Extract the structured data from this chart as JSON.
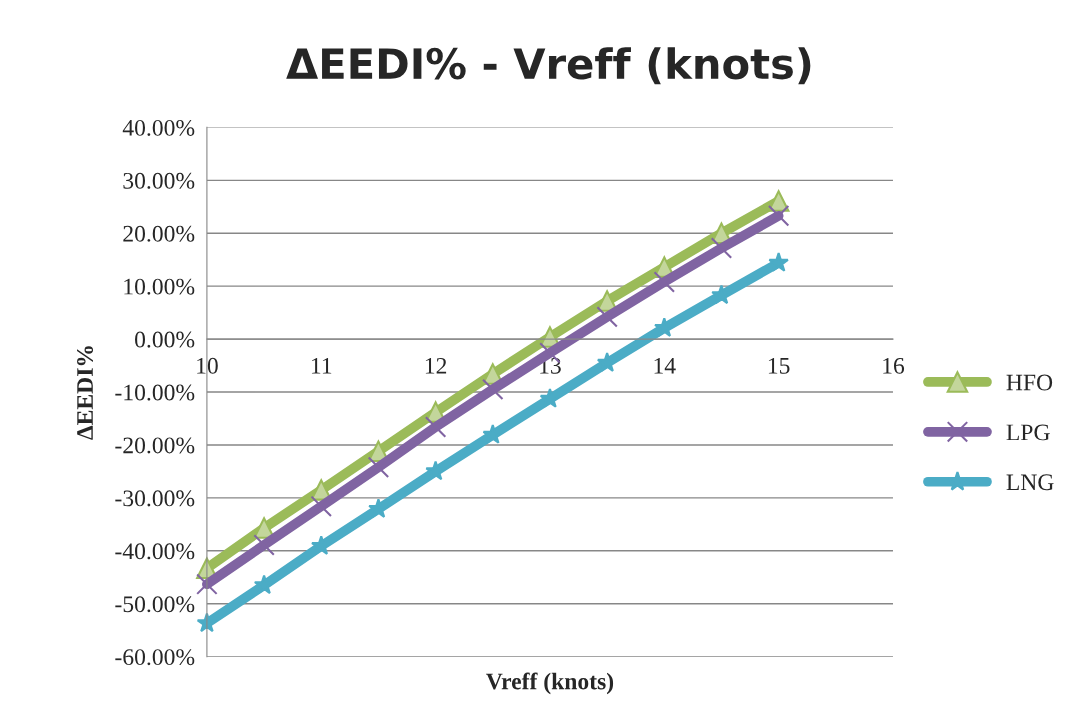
{
  "chart_data": {
    "type": "line",
    "title": "ΔEEDI% - Vreff (knots)",
    "xlabel": "Vreff (knots)",
    "ylabel": "ΔEEDI%",
    "x": [
      10,
      10.5,
      11,
      11.5,
      12,
      12.5,
      13,
      13.5,
      14,
      14.5,
      15
    ],
    "series": [
      {
        "name": "HFO",
        "color": "#9bbb59",
        "marker": "triangle",
        "values": [
          -43.3,
          -35.7,
          -28.5,
          -21.2,
          -13.8,
          -6.6,
          0.4,
          7.2,
          13.6,
          20.0,
          26.1
        ]
      },
      {
        "name": "LPG",
        "color": "#8064a2",
        "marker": "cross",
        "values": [
          -46.3,
          -38.9,
          -31.6,
          -24.2,
          -16.6,
          -9.5,
          -2.6,
          4.2,
          10.8,
          17.2,
          23.3
        ]
      },
      {
        "name": "LNG",
        "color": "#4bacc6",
        "marker": "star",
        "values": [
          -53.7,
          -46.5,
          -39.1,
          -32.1,
          -25.0,
          -18.1,
          -11.3,
          -4.5,
          2.1,
          8.3,
          14.4
        ]
      }
    ],
    "xlim": [
      10,
      16
    ],
    "xticks": [
      10,
      11,
      12,
      13,
      14,
      15,
      16
    ],
    "ylim": [
      -60,
      40
    ],
    "yticks": [
      {
        "value": -60,
        "label": "-60.00%"
      },
      {
        "value": -50,
        "label": "-50.00%"
      },
      {
        "value": -40,
        "label": "-40.00%"
      },
      {
        "value": -30,
        "label": "-30.00%"
      },
      {
        "value": -20,
        "label": "-20.00%"
      },
      {
        "value": -10,
        "label": "-10.00%"
      },
      {
        "value": 0,
        "label": "0.00%"
      },
      {
        "value": 10,
        "label": "10.00%"
      },
      {
        "value": 20,
        "label": "20.00%"
      },
      {
        "value": 30,
        "label": "30.00%"
      },
      {
        "value": 40,
        "label": "40.00%"
      }
    ],
    "grid": "y",
    "legend": "right",
    "line_style": "solid"
  }
}
